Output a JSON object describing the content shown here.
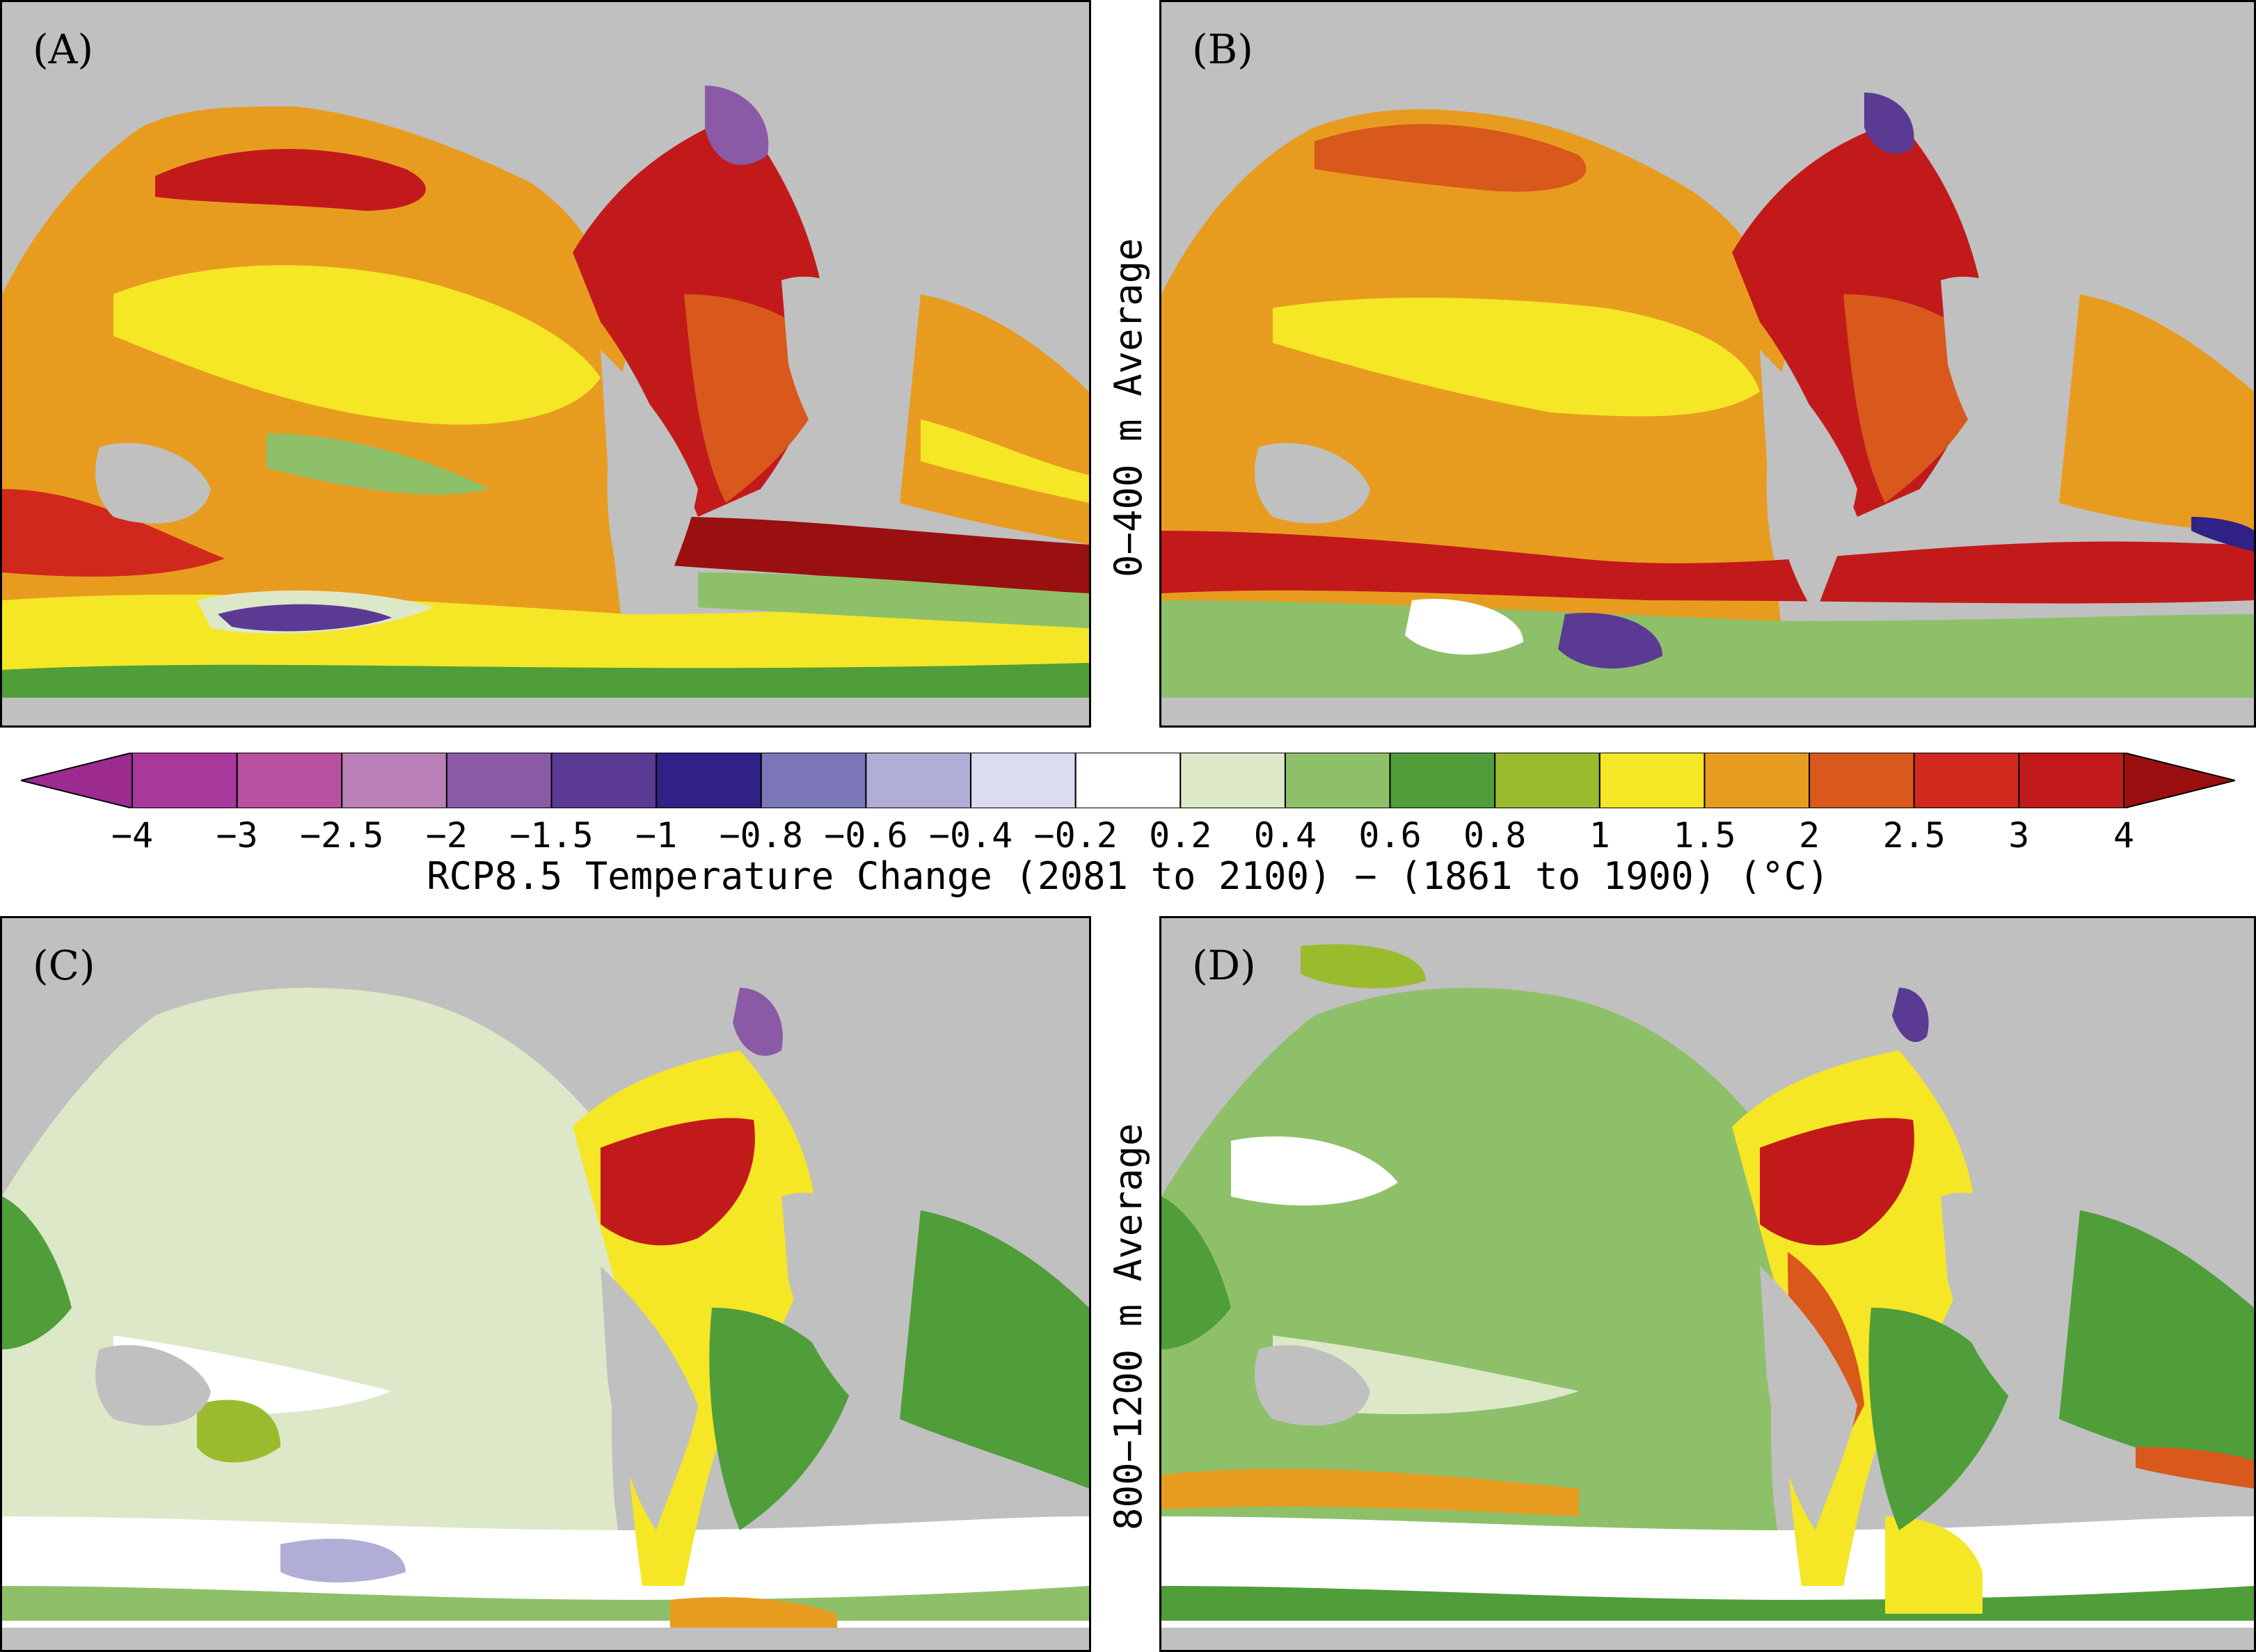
{
  "panels": [
    {
      "id": "A",
      "label": "(A)"
    },
    {
      "id": "B",
      "label": "(B)"
    },
    {
      "id": "C",
      "label": "(C)"
    },
    {
      "id": "D",
      "label": "(D)"
    }
  ],
  "row_labels": {
    "top": "0−400 m Average",
    "bottom": "800−1200 m Average"
  },
  "colorbar": {
    "title": "RCP8.5 Temperature Change (2081 to 2100) − (1861 to 1900) (°C)",
    "ticks": [
      "−4",
      "−3",
      "−2.5",
      "−2",
      "−1.5",
      "−1",
      "−0.8",
      "−0.6",
      "−0.4",
      "−0.2",
      "0.2",
      "0.4",
      "0.6",
      "0.8",
      "1",
      "1.5",
      "2",
      "2.5",
      "3",
      "4"
    ],
    "colors": [
      "#9c2a8f",
      "#a8399a",
      "#b7519f",
      "#bb80b7",
      "#8a5aa6",
      "#5b3a93",
      "#302186",
      "#7b76b8",
      "#b0aed6",
      "#dcdcf0",
      "#ffffff",
      "#dde8c8",
      "#8ec06a",
      "#4f9e3a",
      "#9bbb2f",
      "#f5e626",
      "#e89c1f",
      "#d9581b",
      "#d1281e",
      "#c21a1a",
      "#9a0f0f"
    ],
    "land_color": "#c0c0c0"
  }
}
